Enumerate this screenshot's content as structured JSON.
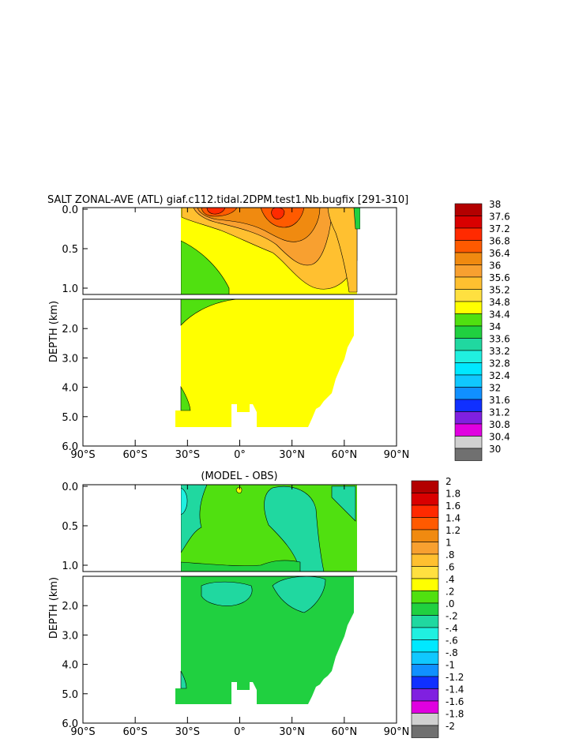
{
  "chart_data": [
    {
      "type": "heatmap",
      "title": "SALT ZONAL-AVE (ATL) giaf.c112.tidal.2DPM.test1.Nb.bugfix [291-310]",
      "ylabel": "DEPTH (km)",
      "xlim": [
        -90,
        90
      ],
      "ylim": [
        6.0,
        0.0
      ],
      "y_break_km": 1.0,
      "x_ticks": [
        "90°S",
        "60°S",
        "30°S",
        "0°",
        "30°N",
        "60°N",
        "90°N"
      ],
      "y_ticks_upper": [
        "0.0",
        "0.5",
        "1.0"
      ],
      "y_ticks_lower": [
        "2.0",
        "3.0",
        "4.0",
        "5.0",
        "6.0"
      ],
      "colorbar": {
        "levels": [
          "38",
          "37.6",
          "37.2",
          "36.8",
          "36.4",
          "36",
          "35.6",
          "35.2",
          "34.8",
          "34.4",
          "34",
          "33.6",
          "33.2",
          "32.8",
          "32.4",
          "32",
          "31.6",
          "31.2",
          "30.8",
          "30.4",
          "30"
        ],
        "colors": [
          "#b30000",
          "#d90000",
          "#ff2a00",
          "#ff5a00",
          "#f08a10",
          "#f8a030",
          "#ffc030",
          "#ffe040",
          "#ffff00",
          "#50e010",
          "#20d040",
          "#20d8a0",
          "#20f0e0",
          "#00e8ff",
          "#10c8ff",
          "#1090ff",
          "#1030ff",
          "#8020e0",
          "#e000e0",
          "#d0d0d0",
          "#707070"
        ]
      },
      "fields": [
        {
          "name": "background",
          "value": "35.0-35.2",
          "color": "#ffff00"
        },
        {
          "name": "south-western fresh tongue",
          "value": "34.4-34.8",
          "color": "#50e010"
        },
        {
          "name": "subtropical south maximum",
          "value": "36.8-37.2",
          "color": "#ff2a00"
        },
        {
          "name": "subtropical north maximum",
          "value": "36.8-37.2",
          "color": "#ff2a00"
        },
        {
          "name": "northern high latitude",
          "value": "35.2-35.6",
          "color": "#ffc030"
        }
      ]
    },
    {
      "type": "heatmap",
      "title": "(MODEL - OBS)",
      "ylabel": "DEPTH (km)",
      "xlim": [
        -90,
        90
      ],
      "ylim": [
        6.0,
        0.0
      ],
      "y_break_km": 1.0,
      "x_ticks": [
        "90°S",
        "60°S",
        "30°S",
        "0°",
        "30°N",
        "60°N",
        "90°N"
      ],
      "y_ticks_upper": [
        "0.0",
        "0.5",
        "1.0"
      ],
      "y_ticks_lower": [
        "2.0",
        "3.0",
        "4.0",
        "5.0",
        "6.0"
      ],
      "colorbar": {
        "levels": [
          "2",
          "1.8",
          "1.6",
          "1.4",
          "1.2",
          "1",
          ".8",
          ".6",
          ".4",
          ".2",
          ".0",
          "-.2",
          "-.4",
          "-.6",
          "-.8",
          "-1",
          "-1.2",
          "-1.4",
          "-1.6",
          "-1.8",
          "-2"
        ],
        "colors": [
          "#b30000",
          "#d90000",
          "#ff2a00",
          "#ff5a00",
          "#f08a10",
          "#f8a030",
          "#ffc030",
          "#ffe040",
          "#ffff00",
          "#50e010",
          "#20d040",
          "#20d8a0",
          "#20f0e0",
          "#00e8ff",
          "#10c8ff",
          "#1090ff",
          "#1030ff",
          "#8020e0",
          "#e000e0",
          "#d0d0d0",
          "#707070"
        ]
      },
      "fields": [
        {
          "name": "background",
          "value": "0.0-0.2",
          "color": "#20d040"
        },
        {
          "name": "upper ocean bias",
          "value": "0.2-0.4",
          "color": "#50e010"
        },
        {
          "name": "negative bias patches",
          "value": "-0.2-0.0",
          "color": "#20d8a0"
        }
      ]
    }
  ]
}
